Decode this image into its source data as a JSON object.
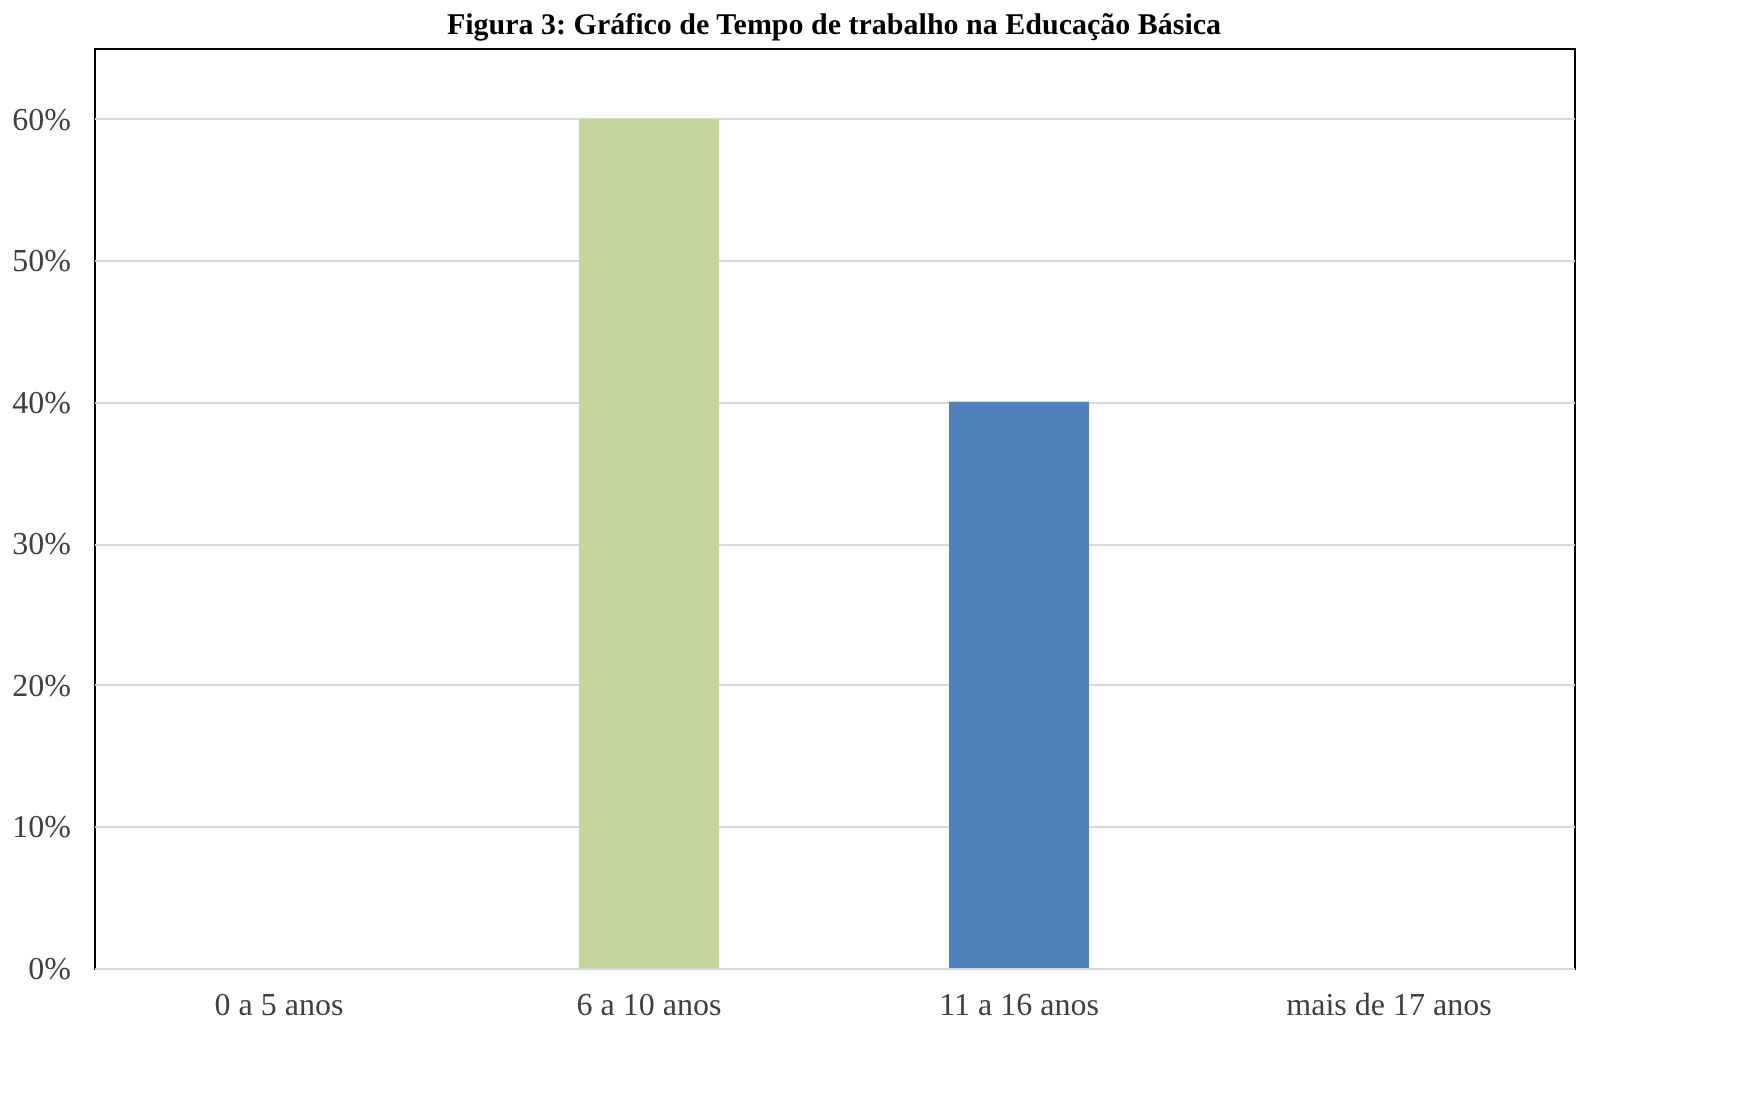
{
  "chart_data": {
    "type": "bar",
    "title": "Figura 3: Gráfico de Tempo de trabalho na Educação Básica",
    "categories": [
      "0 a 5 anos",
      "6 a 10 anos",
      "11 a 16 anos",
      "mais de 17 anos"
    ],
    "values": [
      0,
      60,
      40,
      0
    ],
    "colors": [
      "#c8c800",
      "#c4d69b",
      "#4f81bd",
      "#c89600"
    ],
    "ylim": [
      0,
      65
    ],
    "yticks": [
      {
        "value": 0,
        "label": "0%"
      },
      {
        "value": 10,
        "label": "10%"
      },
      {
        "value": 20,
        "label": "20%"
      },
      {
        "value": 30,
        "label": "30%"
      },
      {
        "value": 40,
        "label": "40%"
      },
      {
        "value": 50,
        "label": "50%"
      },
      {
        "value": 60,
        "label": "60%"
      }
    ],
    "grid": "y",
    "legend": false
  }
}
